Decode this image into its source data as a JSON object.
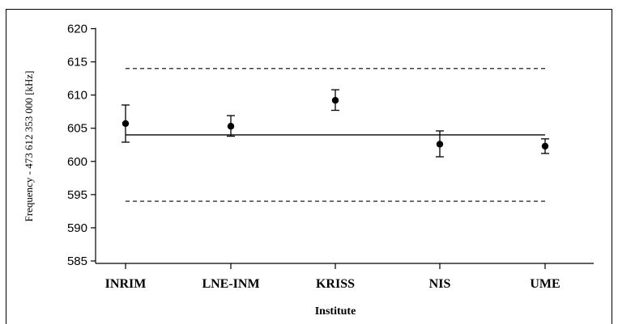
{
  "chart_data": {
    "type": "scatter",
    "title": "",
    "xlabel": "Institute",
    "ylabel": "Frequency - 473 612 353 000 [kHz]",
    "categories": [
      "INRIM",
      "LNE-INM",
      "KRISS",
      "NIS",
      "UME"
    ],
    "ylim": [
      584,
      620
    ],
    "yticks": [
      585,
      590,
      595,
      600,
      605,
      610,
      615,
      620
    ],
    "series": [
      {
        "values": [
          605.7,
          605.3,
          609.2,
          602.6,
          602.3
        ],
        "error_low": [
          602.9,
          603.8,
          607.7,
          600.7,
          601.2
        ],
        "error_high": [
          608.5,
          606.9,
          610.8,
          604.6,
          603.4
        ]
      }
    ],
    "reference_lines": [
      {
        "style": "solid",
        "value": 604.0
      },
      {
        "style": "dashed",
        "value": 614.0
      },
      {
        "style": "dashed",
        "value": 594.0
      }
    ],
    "grid": false,
    "legend": "none"
  }
}
